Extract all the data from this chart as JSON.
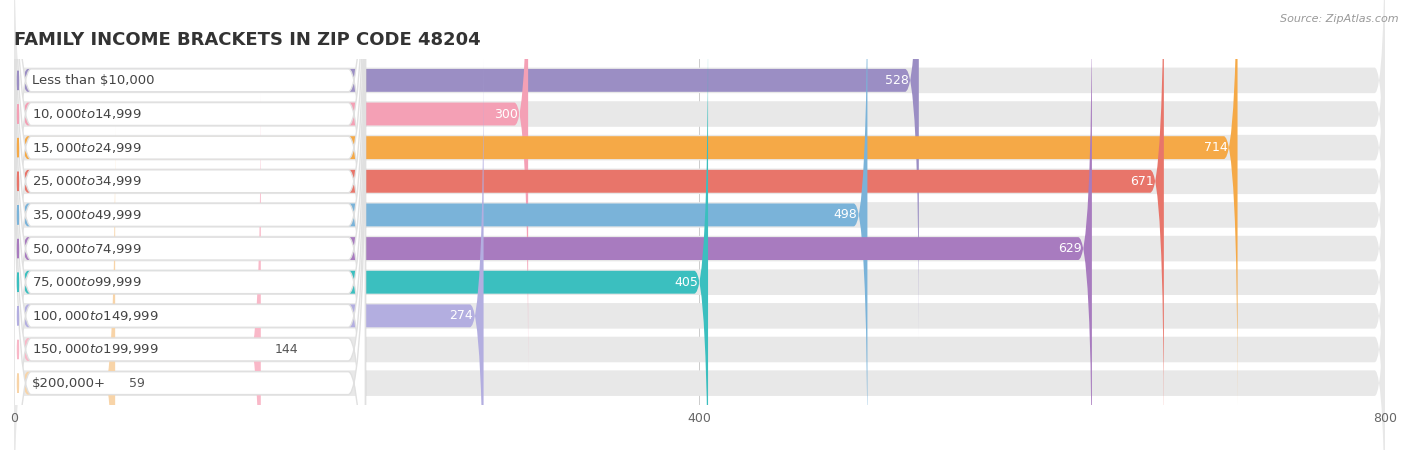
{
  "title": "FAMILY INCOME BRACKETS IN ZIP CODE 48204",
  "source": "Source: ZipAtlas.com",
  "categories": [
    "Less than $10,000",
    "$10,000 to $14,999",
    "$15,000 to $24,999",
    "$25,000 to $34,999",
    "$35,000 to $49,999",
    "$50,000 to $74,999",
    "$75,000 to $99,999",
    "$100,000 to $149,999",
    "$150,000 to $199,999",
    "$200,000+"
  ],
  "values": [
    528,
    300,
    714,
    671,
    498,
    629,
    405,
    274,
    144,
    59
  ],
  "bar_colors": [
    "#9b8ec4",
    "#f4a0b5",
    "#f5a947",
    "#e8756a",
    "#7ab3d9",
    "#a87bbf",
    "#3bbfbf",
    "#b3aee0",
    "#f9b8c8",
    "#f8d4a8"
  ],
  "xlim": [
    0,
    800
  ],
  "xticks": [
    0,
    400,
    800
  ],
  "background_color": "#f2f2f2",
  "bar_bg_color": "#e8e8e8",
  "row_bg_color": "#f8f8f8",
  "title_fontsize": 13,
  "label_fontsize": 9.5,
  "value_fontsize": 9
}
